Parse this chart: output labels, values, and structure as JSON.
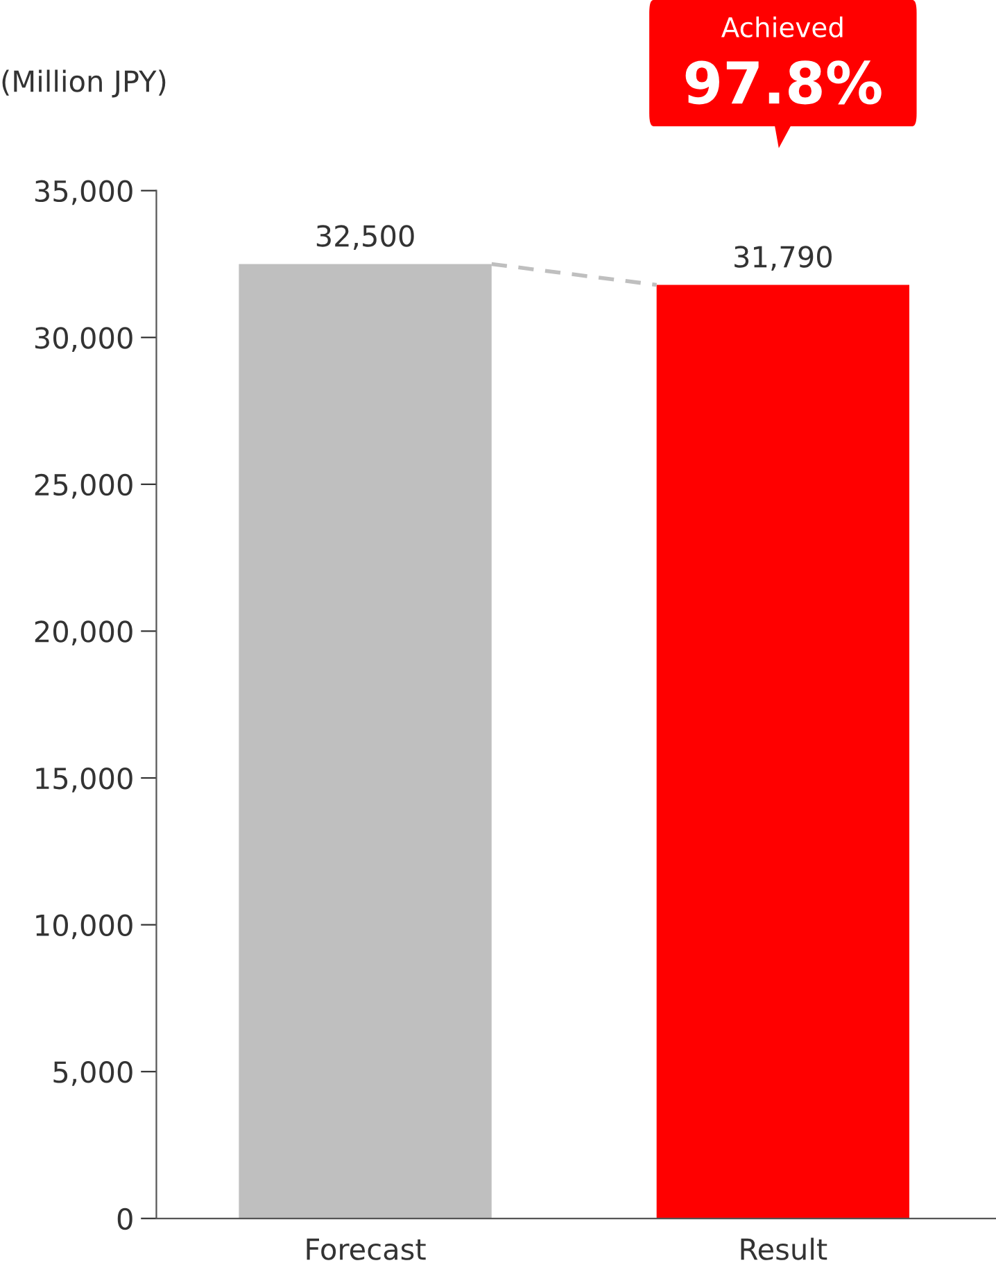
{
  "chart_data": {
    "type": "bar",
    "ylabel": "(Million JPY)",
    "categories": [
      "Forecast",
      "Result"
    ],
    "values": [
      32500,
      31790
    ],
    "colors": [
      "#bfbfbf",
      "#ff0000"
    ],
    "value_labels": [
      "32,500",
      "31,790"
    ],
    "ylim": [
      0,
      35000
    ],
    "yticks": [
      {
        "value": 0,
        "label": "0"
      },
      {
        "value": 5000,
        "label": "5,000"
      },
      {
        "value": 10000,
        "label": "10,000"
      },
      {
        "value": 15000,
        "label": "15,000"
      },
      {
        "value": 20000,
        "label": "20,000"
      },
      {
        "value": 25000,
        "label": "25,000"
      },
      {
        "value": 30000,
        "label": "30,000"
      },
      {
        "value": 35000,
        "label": "35,000"
      }
    ],
    "annotations": [
      "Achieved",
      "97.8%"
    ],
    "grid": false,
    "legend": false
  }
}
